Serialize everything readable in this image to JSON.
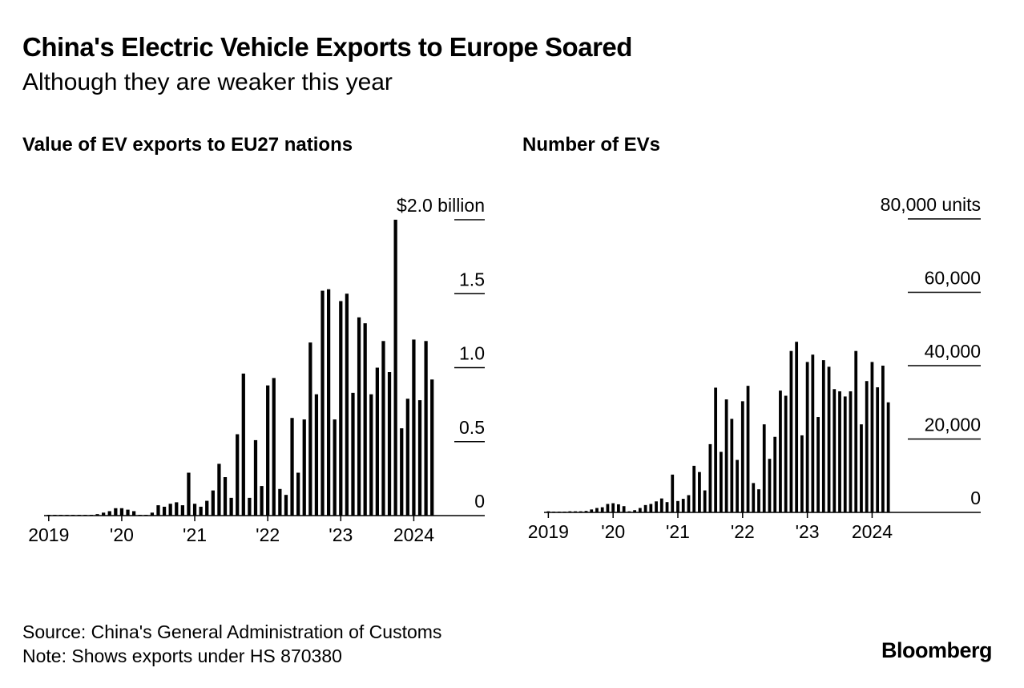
{
  "title": "China's Electric Vehicle Exports to Europe Soared",
  "subtitle": "Although they are weaker this year",
  "footer": {
    "source": "Source: China's General Administration of Customs",
    "note": "Note: Shows exports under HS 870380",
    "brand": "Bloomberg"
  },
  "colors": {
    "bars": "#000000",
    "gridlines": "#000000",
    "background": "#ffffff"
  },
  "chart_data": [
    {
      "type": "bar",
      "title": "Value of EV exports to EU27 nations",
      "ylabel": "$ billion",
      "ylim": [
        0,
        2.0
      ],
      "ytick_values": [
        0,
        0.5,
        1.0,
        1.5,
        2.0
      ],
      "ytick_labels": [
        "0",
        "0.5",
        "1.0",
        "1.5",
        "$2.0 billion"
      ],
      "xtick_labels": [
        "2019",
        "'20",
        "'21",
        "'22",
        "'23",
        "2024"
      ],
      "xtick_month_index": [
        0,
        12,
        24,
        36,
        48,
        60
      ],
      "start": "2019-01",
      "end": "2024-04",
      "values": [
        0.005,
        0.005,
        0.005,
        0.005,
        0.005,
        0.005,
        0.005,
        0.005,
        0.01,
        0.02,
        0.03,
        0.05,
        0.05,
        0.04,
        0.03,
        0.005,
        0.005,
        0.02,
        0.07,
        0.06,
        0.08,
        0.09,
        0.07,
        0.29,
        0.08,
        0.06,
        0.1,
        0.17,
        0.35,
        0.26,
        0.12,
        0.55,
        0.96,
        0.12,
        0.51,
        0.2,
        0.88,
        0.93,
        0.18,
        0.14,
        0.66,
        0.29,
        0.65,
        1.17,
        0.82,
        1.52,
        1.53,
        0.65,
        1.45,
        1.5,
        0.83,
        1.34,
        1.3,
        0.82,
        1.0,
        1.18,
        0.97,
        2.0,
        0.59,
        0.79,
        1.19,
        0.78,
        1.18,
        0.92
      ]
    },
    {
      "type": "bar",
      "title": "Number of EVs",
      "ylabel": "units",
      "ylim": [
        0,
        80000
      ],
      "ytick_values": [
        0,
        20000,
        40000,
        60000,
        80000
      ],
      "ytick_labels": [
        "0",
        "20,000",
        "40,000",
        "60,000",
        "80,000 units"
      ],
      "xtick_labels": [
        "2019",
        "'20",
        "'21",
        "'22",
        "'23",
        "2024"
      ],
      "xtick_month_index": [
        0,
        12,
        24,
        36,
        48,
        60
      ],
      "start": "2019-01",
      "end": "2024-04",
      "values": [
        300,
        200,
        200,
        200,
        300,
        300,
        300,
        400,
        800,
        1200,
        1400,
        2300,
        2500,
        2200,
        1700,
        300,
        600,
        1200,
        2000,
        2300,
        3000,
        3800,
        2800,
        10300,
        3100,
        3700,
        4700,
        12700,
        11000,
        6000,
        18600,
        34000,
        16500,
        30800,
        25500,
        14300,
        30300,
        34500,
        8000,
        6300,
        24000,
        14600,
        20600,
        33200,
        31800,
        44000,
        46500,
        21000,
        41000,
        43000,
        26000,
        41500,
        39700,
        33600,
        33000,
        31600,
        33000,
        44000,
        24000,
        35800,
        41000,
        34100,
        40000,
        30000
      ]
    }
  ]
}
